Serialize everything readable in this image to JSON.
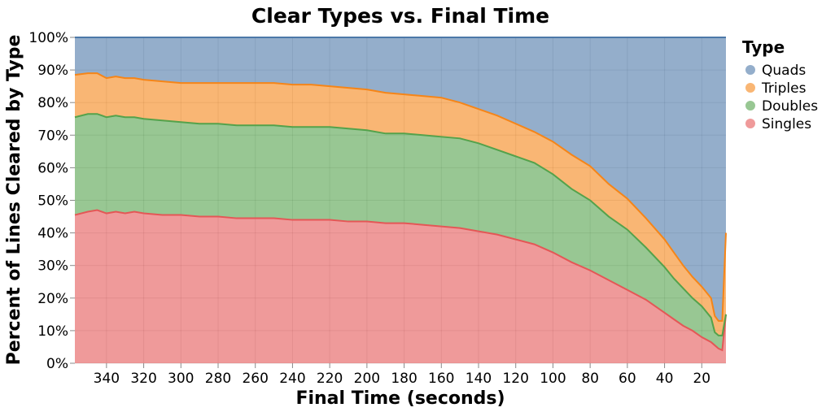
{
  "chart_data": {
    "type": "area",
    "stacked": "normalized",
    "title": "Clear Types vs. Final Time",
    "xlabel": "Final Time (seconds)",
    "ylabel": "Percent of Lines Cleared by Type",
    "xlim": [
      357,
      7
    ],
    "x_reversed": true,
    "ylim": [
      0,
      100
    ],
    "x_ticks": [
      340,
      320,
      300,
      280,
      260,
      240,
      220,
      200,
      180,
      160,
      140,
      120,
      100,
      80,
      60,
      40,
      20
    ],
    "y_ticks": [
      0,
      10,
      20,
      30,
      40,
      50,
      60,
      70,
      80,
      90,
      100
    ],
    "y_tick_labels": [
      "0%",
      "10%",
      "20%",
      "30%",
      "40%",
      "50%",
      "60%",
      "70%",
      "80%",
      "90%",
      "100%"
    ],
    "grid": true,
    "legend_title": "Type",
    "legend_position": "right",
    "legend": [
      {
        "name": "Quads",
        "color": "#4c78a8"
      },
      {
        "name": "Triples",
        "color": "#f58518"
      },
      {
        "name": "Doubles",
        "color": "#54a24b"
      },
      {
        "name": "Singles",
        "color": "#e45756"
      }
    ],
    "x": [
      357,
      350,
      345,
      340,
      335,
      330,
      325,
      320,
      310,
      300,
      290,
      280,
      270,
      260,
      250,
      240,
      230,
      220,
      210,
      200,
      190,
      180,
      170,
      160,
      150,
      140,
      130,
      120,
      110,
      100,
      90,
      80,
      70,
      60,
      50,
      40,
      35,
      30,
      25,
      20,
      15,
      13,
      11,
      9,
      7
    ],
    "series": [
      {
        "name": "Singles",
        "values": [
          45.5,
          46.5,
          47.0,
          46.0,
          46.5,
          46.0,
          46.5,
          46.0,
          45.5,
          45.5,
          45.0,
          45.0,
          44.5,
          44.5,
          44.5,
          44.0,
          44.0,
          44.0,
          43.5,
          43.5,
          43.0,
          43.0,
          42.5,
          42.0,
          41.5,
          40.5,
          39.5,
          38.0,
          36.5,
          34.0,
          31.0,
          28.5,
          25.5,
          22.5,
          19.5,
          15.5,
          13.5,
          11.5,
          10.0,
          8.0,
          6.5,
          5.5,
          4.5,
          4.0,
          15.0
        ]
      },
      {
        "name": "Doubles",
        "values": [
          30.0,
          30.0,
          29.5,
          29.5,
          29.5,
          29.5,
          29.0,
          29.0,
          29.0,
          28.5,
          28.5,
          28.5,
          28.5,
          28.5,
          28.5,
          28.5,
          28.5,
          28.5,
          28.5,
          28.0,
          27.5,
          27.5,
          27.5,
          27.5,
          27.5,
          27.0,
          26.0,
          25.5,
          25.0,
          24.0,
          22.5,
          21.5,
          19.5,
          18.5,
          16.0,
          14.0,
          12.5,
          11.5,
          10.0,
          9.5,
          7.5,
          4.0,
          4.0,
          4.5,
          0.0
        ]
      },
      {
        "name": "Triples",
        "values": [
          13.0,
          12.5,
          12.5,
          12.0,
          12.0,
          12.0,
          12.0,
          12.0,
          12.0,
          12.0,
          12.5,
          12.5,
          13.0,
          13.0,
          13.0,
          13.0,
          13.0,
          12.5,
          12.5,
          12.5,
          12.5,
          12.0,
          12.0,
          12.0,
          11.0,
          10.5,
          10.5,
          10.0,
          9.5,
          10.0,
          10.5,
          10.5,
          10.0,
          9.5,
          9.0,
          8.5,
          8.0,
          7.0,
          6.5,
          6.0,
          6.0,
          5.0,
          4.5,
          4.5,
          25.0
        ]
      },
      {
        "name": "Quads",
        "values": [
          11.5,
          11.0,
          11.0,
          12.5,
          12.0,
          12.5,
          12.5,
          13.0,
          13.5,
          14.0,
          14.0,
          14.0,
          14.0,
          14.0,
          14.0,
          14.5,
          14.5,
          15.0,
          15.5,
          16.0,
          17.0,
          17.5,
          18.0,
          18.5,
          20.0,
          22.0,
          24.0,
          26.5,
          29.0,
          32.0,
          36.0,
          39.5,
          45.0,
          49.5,
          55.5,
          62.0,
          66.0,
          70.0,
          73.5,
          76.5,
          80.0,
          85.5,
          87.0,
          87.0,
          60.0
        ]
      }
    ]
  }
}
